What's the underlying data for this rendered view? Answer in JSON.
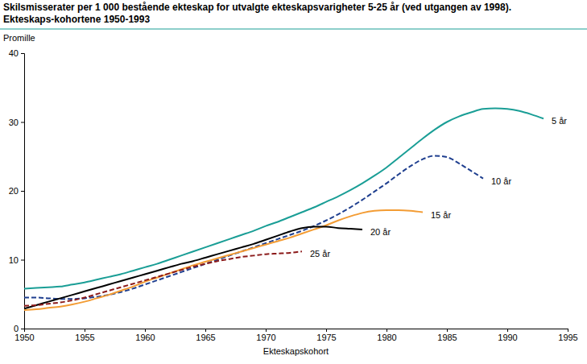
{
  "chart_data": {
    "type": "line",
    "title": "Skilsmisserater per 1 000 bestående ekteskap for utvalgte ekteskapsvarigheter 5-25 år (ved utgangen av 1998).",
    "subtitle": "Ekteskaps-kohortene 1950-1993",
    "y_label": "Promille",
    "x_label": "Ekteskapskohort",
    "x": [
      1950,
      1951,
      1952,
      1953,
      1954,
      1955,
      1956,
      1957,
      1958,
      1959,
      1960,
      1961,
      1962,
      1963,
      1964,
      1965,
      1966,
      1967,
      1968,
      1969,
      1970,
      1971,
      1972,
      1973,
      1974,
      1975,
      1976,
      1977,
      1978,
      1979,
      1980,
      1981,
      1982,
      1983,
      1984,
      1985,
      1986,
      1987,
      1988,
      1989,
      1990,
      1991,
      1992,
      1993
    ],
    "series": [
      {
        "name": "5 år",
        "color": "#1a9e96",
        "line_style": "solid",
        "values": [
          5.8,
          5.9,
          6.0,
          6.1,
          6.4,
          6.7,
          7.1,
          7.5,
          7.9,
          8.4,
          8.9,
          9.4,
          10.0,
          10.6,
          11.2,
          11.8,
          12.4,
          13.0,
          13.6,
          14.2,
          14.9,
          15.5,
          16.2,
          16.9,
          17.6,
          18.4,
          19.2,
          20.1,
          21.1,
          22.2,
          23.4,
          24.8,
          26.2,
          27.6,
          28.9,
          30.0,
          30.8,
          31.4,
          31.9,
          32.0,
          31.9,
          31.6,
          31.1,
          30.5
        ]
      },
      {
        "name": "10 år",
        "color": "#1f3f8f",
        "line_style": "dashed",
        "values": [
          4.5,
          4.5,
          4.4,
          4.3,
          4.3,
          4.4,
          4.6,
          4.9,
          5.3,
          5.8,
          6.4,
          7.0,
          7.6,
          8.2,
          8.8,
          9.4,
          10.0,
          10.6,
          11.2,
          11.8,
          12.4,
          13.0,
          13.6,
          14.2,
          14.9,
          15.7,
          16.6,
          17.6,
          18.7,
          19.9,
          21.1,
          22.4,
          23.6,
          24.6,
          25.1,
          24.9,
          24.0,
          22.9,
          21.8,
          null,
          null,
          null,
          null,
          null
        ]
      },
      {
        "name": "15 år",
        "color": "#f39c34",
        "line_style": "solid",
        "values": [
          2.7,
          2.8,
          3.0,
          3.2,
          3.5,
          3.9,
          4.4,
          4.9,
          5.5,
          6.1,
          6.8,
          7.4,
          8.0,
          8.6,
          9.2,
          9.7,
          10.2,
          10.7,
          11.2,
          11.7,
          12.2,
          12.7,
          13.2,
          13.8,
          14.4,
          15.0,
          15.7,
          16.3,
          16.8,
          17.1,
          17.2,
          17.2,
          17.1,
          16.9,
          null,
          null,
          null,
          null,
          null,
          null,
          null,
          null,
          null,
          null
        ]
      },
      {
        "name": "20 år",
        "color": "#000000",
        "line_style": "solid",
        "values": [
          2.9,
          3.4,
          3.9,
          4.4,
          4.9,
          5.4,
          5.9,
          6.4,
          6.9,
          7.4,
          7.9,
          8.4,
          8.9,
          9.4,
          9.8,
          10.3,
          10.8,
          11.3,
          11.8,
          12.3,
          12.9,
          13.5,
          14.1,
          14.6,
          14.8,
          14.8,
          14.6,
          14.5,
          14.4,
          null,
          null,
          null,
          null,
          null,
          null,
          null,
          null,
          null,
          null,
          null,
          null,
          null,
          null,
          null
        ]
      },
      {
        "name": "25 år",
        "color": "#8b1a1a",
        "line_style": "dashed",
        "values": [
          3.3,
          3.4,
          3.6,
          3.8,
          4.1,
          4.5,
          5.0,
          5.5,
          6.0,
          6.5,
          7.0,
          7.5,
          8.0,
          8.5,
          9.0,
          9.4,
          9.8,
          10.1,
          10.4,
          10.6,
          10.8,
          10.9,
          11.0,
          11.2,
          null,
          null,
          null,
          null,
          null,
          null,
          null,
          null,
          null,
          null,
          null,
          null,
          null,
          null,
          null,
          null,
          null,
          null,
          null,
          null
        ]
      }
    ],
    "xlim": [
      1950,
      1995
    ],
    "xticks": [
      1950,
      1955,
      1960,
      1965,
      1970,
      1975,
      1980,
      1985,
      1990,
      1995
    ],
    "ylim": [
      0,
      40
    ],
    "yticks": [
      0,
      10,
      20,
      30,
      40
    ],
    "grid": false
  }
}
